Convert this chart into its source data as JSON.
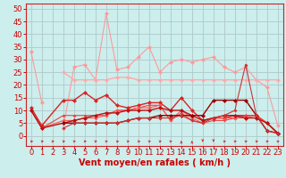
{
  "title": "",
  "xlabel": "Vent moyen/en rafales ( km/h )",
  "ylabel": "",
  "background_color": "#cceeed",
  "grid_color": "#b0c8c8",
  "x_ticks": [
    0,
    1,
    2,
    3,
    4,
    5,
    6,
    7,
    8,
    9,
    10,
    11,
    12,
    13,
    14,
    15,
    16,
    17,
    18,
    19,
    20,
    21,
    22,
    23
  ],
  "y_ticks": [
    0,
    5,
    10,
    15,
    20,
    25,
    30,
    35,
    40,
    45,
    50
  ],
  "ylim": [
    -4,
    52
  ],
  "xlim": [
    -0.5,
    23.5
  ],
  "series": [
    {
      "x": [
        0,
        1
      ],
      "y": [
        33,
        13
      ],
      "color": "#ff9999",
      "lw": 0.8,
      "ms": 2.5
    },
    {
      "x": [
        3,
        4,
        5,
        6,
        7,
        8,
        9,
        10,
        11,
        12,
        13,
        14,
        15,
        16,
        17,
        18,
        19,
        20,
        21,
        22,
        23
      ],
      "y": [
        3,
        27,
        28,
        22,
        48,
        26,
        27,
        31,
        35,
        25,
        29,
        30,
        29,
        30,
        31,
        27,
        25,
        27,
        22,
        19,
        4
      ],
      "color": "#ff9999",
      "lw": 0.8,
      "ms": 2.5
    },
    {
      "x": [
        3,
        4,
        5,
        6,
        7,
        8,
        9,
        10,
        11,
        12,
        13,
        14,
        15,
        16,
        17,
        18,
        19,
        20,
        21,
        22,
        23
      ],
      "y": [
        25,
        22,
        22,
        22,
        22,
        23,
        23,
        22,
        22,
        22,
        22,
        22,
        22,
        22,
        22,
        22,
        22,
        22,
        22,
        22,
        22
      ],
      "color": "#ffaaaa",
      "lw": 1.0,
      "ms": 2.5
    },
    {
      "x": [
        0,
        1,
        3,
        4,
        5,
        6,
        7,
        8,
        9,
        10,
        11,
        12,
        13,
        14,
        15,
        16,
        17,
        18,
        19,
        20,
        21,
        22,
        23
      ],
      "y": [
        11,
        4,
        14,
        14,
        17,
        14,
        16,
        12,
        11,
        12,
        13,
        13,
        10,
        15,
        10,
        6,
        7,
        7,
        8,
        8,
        8,
        5,
        1
      ],
      "color": "#dd2222",
      "lw": 1.0,
      "ms": 2.5
    },
    {
      "x": [
        0,
        1,
        3,
        4,
        5,
        6,
        7,
        8,
        9,
        10,
        11,
        12,
        13,
        14,
        15,
        16,
        17,
        18,
        19,
        20,
        21,
        22,
        23
      ],
      "y": [
        10,
        3,
        8,
        8,
        8,
        8,
        8,
        10,
        10,
        11,
        12,
        12,
        6,
        9,
        6,
        5,
        6,
        6,
        7,
        8,
        8,
        5,
        1
      ],
      "color": "#ee4444",
      "lw": 0.8,
      "ms": 2.0
    },
    {
      "x": [
        0,
        1,
        3,
        4,
        5,
        6,
        7,
        8,
        9,
        10,
        11,
        12,
        13,
        14,
        15,
        16,
        17,
        18,
        19,
        20,
        21,
        22,
        23
      ],
      "y": [
        10,
        3,
        6,
        6,
        7,
        7,
        8,
        10,
        10,
        11,
        11,
        12,
        6,
        10,
        7,
        5,
        7,
        7,
        7,
        7,
        8,
        5,
        1
      ],
      "color": "#ff5555",
      "lw": 0.8,
      "ms": 2.0
    },
    {
      "x": [
        0,
        1,
        3,
        4,
        5,
        6,
        7,
        8,
        9,
        10,
        11,
        12,
        13,
        14,
        15,
        16,
        17,
        18,
        19,
        20,
        21,
        22,
        23
      ],
      "y": [
        10,
        3,
        5,
        6,
        7,
        8,
        9,
        9,
        10,
        10,
        10,
        11,
        10,
        10,
        8,
        6,
        7,
        8,
        8,
        7,
        7,
        5,
        1
      ],
      "color": "#bb1111",
      "lw": 1.0,
      "ms": 2.5
    },
    {
      "x": [
        3,
        4,
        5,
        6,
        7,
        8,
        9,
        10,
        11,
        12,
        13,
        14,
        15,
        16,
        17,
        18,
        19,
        20,
        21,
        22,
        23
      ],
      "y": [
        5,
        5,
        5,
        5,
        5,
        5,
        6,
        7,
        7,
        8,
        8,
        8,
        8,
        8,
        14,
        14,
        14,
        14,
        8,
        2,
        1
      ],
      "color": "#990000",
      "lw": 1.0,
      "ms": 2.5
    },
    {
      "x": [
        3,
        4,
        5,
        6,
        7,
        8,
        9,
        10,
        11,
        12,
        13,
        14,
        15,
        16,
        17,
        18,
        19,
        20,
        21,
        22,
        23
      ],
      "y": [
        3,
        5,
        5,
        5,
        5,
        5,
        6,
        7,
        7,
        7,
        7,
        8,
        6,
        5,
        7,
        8,
        10,
        28,
        8,
        2,
        1
      ],
      "color": "#cc3333",
      "lw": 0.8,
      "ms": 2.0
    }
  ],
  "arrow_color": "#cc2222",
  "xlabel_color": "#cc0000",
  "xlabel_fontsize": 7,
  "tick_color": "#cc0000",
  "tick_fontsize": 6,
  "spine_color": "#cc2222"
}
